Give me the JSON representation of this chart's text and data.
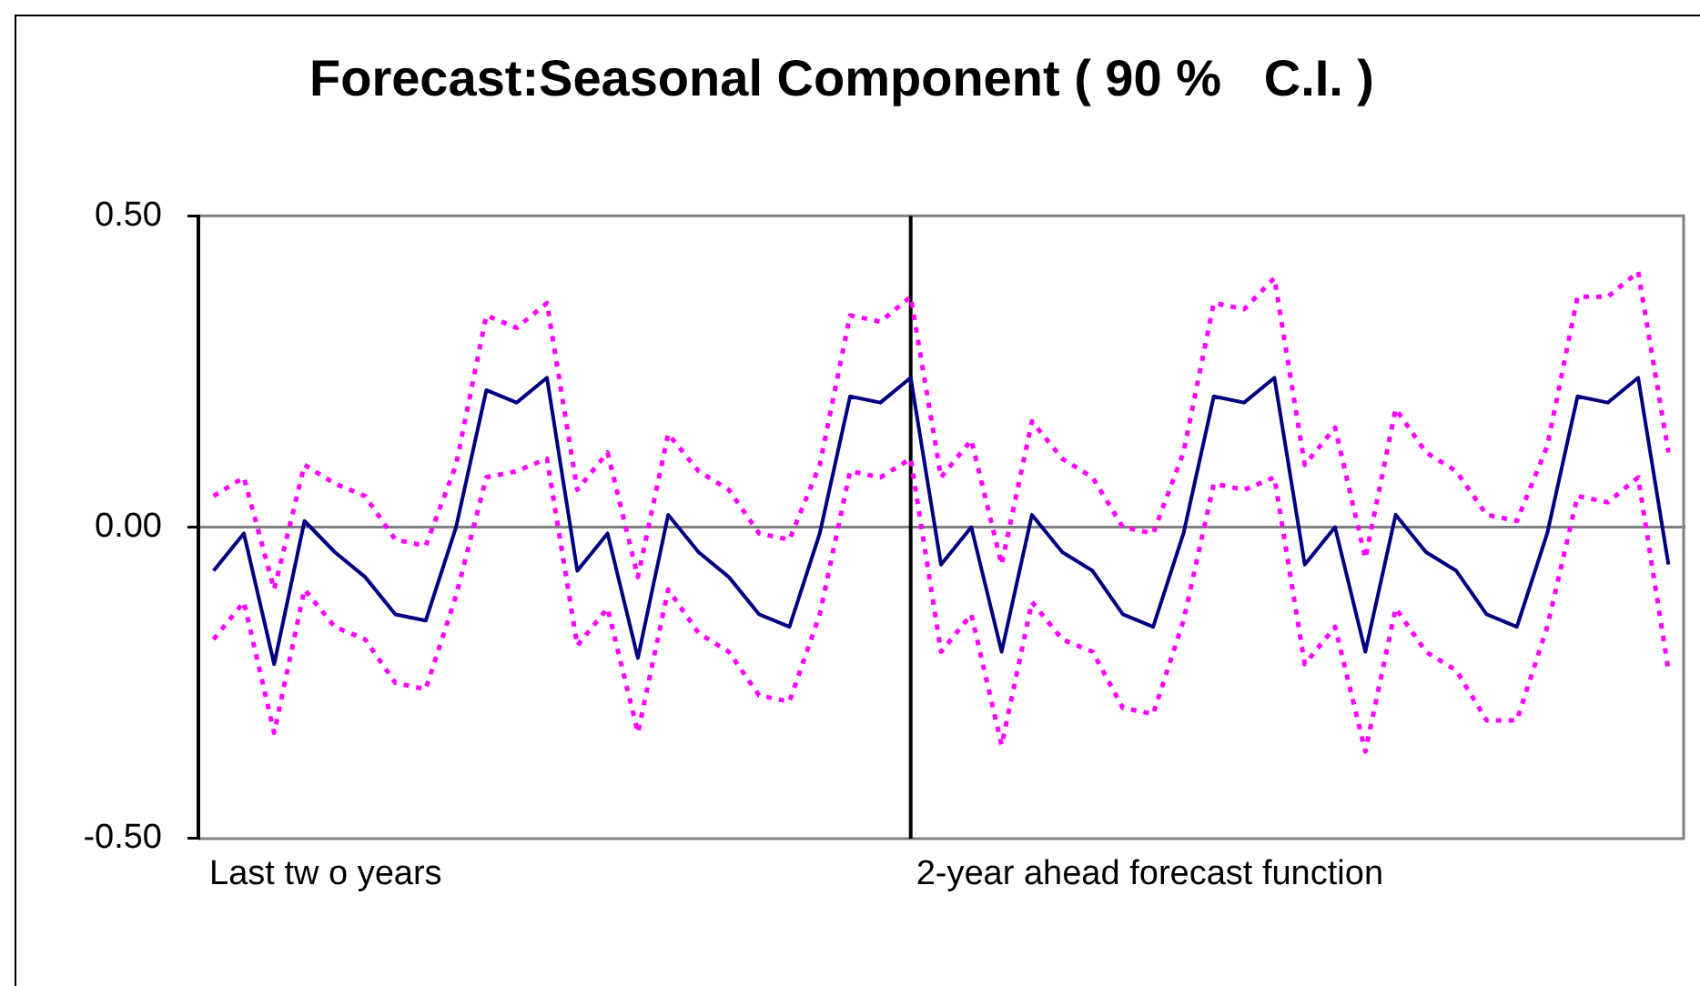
{
  "chart_data": {
    "type": "line",
    "title": "Forecast:Seasonal Component ( 90 %   C.I. )",
    "categories": [
      null,
      null,
      null,
      null,
      null,
      null,
      null,
      null,
      null,
      null,
      null,
      null,
      null,
      null,
      null,
      null,
      null,
      null,
      null,
      null,
      null,
      null,
      null,
      null,
      null,
      null,
      null,
      null,
      null,
      null,
      null,
      null,
      null,
      null,
      null,
      null,
      null,
      null,
      null,
      null,
      null,
      null,
      null,
      null,
      null,
      null,
      null,
      null,
      null
    ],
    "series": [
      {
        "color": "#000080",
        "line_style": "solid",
        "values": [
          -0.07,
          -0.01,
          -0.22,
          0.01,
          -0.04,
          -0.08,
          -0.14,
          -0.15,
          0.0,
          0.22,
          0.2,
          0.24,
          -0.07,
          -0.01,
          -0.21,
          0.02,
          -0.04,
          -0.08,
          -0.14,
          -0.16,
          -0.01,
          0.21,
          0.2,
          0.24,
          -0.06,
          0.0,
          -0.2,
          0.02,
          -0.04,
          -0.07,
          -0.14,
          -0.16,
          -0.01,
          0.21,
          0.2,
          0.24,
          -0.06,
          0.0,
          -0.2,
          0.02,
          -0.04,
          -0.07,
          -0.14,
          -0.16,
          -0.01,
          0.21,
          0.2,
          0.24,
          -0.06
        ]
      },
      {
        "color": "#ff00ff",
        "line_style": "dotted",
        "values": [
          0.05,
          0.08,
          -0.1,
          0.1,
          0.07,
          0.05,
          -0.02,
          -0.03,
          0.1,
          0.34,
          0.32,
          0.36,
          0.06,
          0.12,
          -0.08,
          0.15,
          0.09,
          0.06,
          -0.01,
          -0.02,
          0.1,
          0.34,
          0.33,
          0.37,
          0.08,
          0.14,
          -0.06,
          0.17,
          0.11,
          0.08,
          0.0,
          -0.01,
          0.12,
          0.36,
          0.35,
          0.4,
          0.1,
          0.16,
          -0.05,
          0.19,
          0.12,
          0.09,
          0.02,
          0.01,
          0.13,
          0.37,
          0.37,
          0.41,
          0.12
        ]
      },
      {
        "color": "#ff00ff",
        "line_style": "dotted",
        "values": [
          -0.18,
          -0.12,
          -0.33,
          -0.1,
          -0.16,
          -0.18,
          -0.25,
          -0.26,
          -0.11,
          0.08,
          0.09,
          0.11,
          -0.19,
          -0.13,
          -0.33,
          -0.1,
          -0.17,
          -0.2,
          -0.27,
          -0.28,
          -0.14,
          0.09,
          0.08,
          0.11,
          -0.2,
          -0.14,
          -0.35,
          -0.12,
          -0.18,
          -0.2,
          -0.29,
          -0.3,
          -0.15,
          0.07,
          0.06,
          0.08,
          -0.22,
          -0.16,
          -0.36,
          -0.13,
          -0.2,
          -0.23,
          -0.31,
          -0.31,
          -0.16,
          0.05,
          0.04,
          0.08,
          -0.23
        ]
      }
    ],
    "ylim": [
      -0.5,
      0.5
    ],
    "yticks": [
      {
        "value": -0.5,
        "label": "-0.50"
      },
      {
        "value": 0,
        "label": "0.00"
      },
      {
        "value": 0.5,
        "label": "0.50"
      }
    ],
    "annotations": [
      "Last tw o years",
      "2-year ahead forecast function"
    ],
    "legend": false,
    "marker": "none",
    "tick_labels": "y"
  }
}
